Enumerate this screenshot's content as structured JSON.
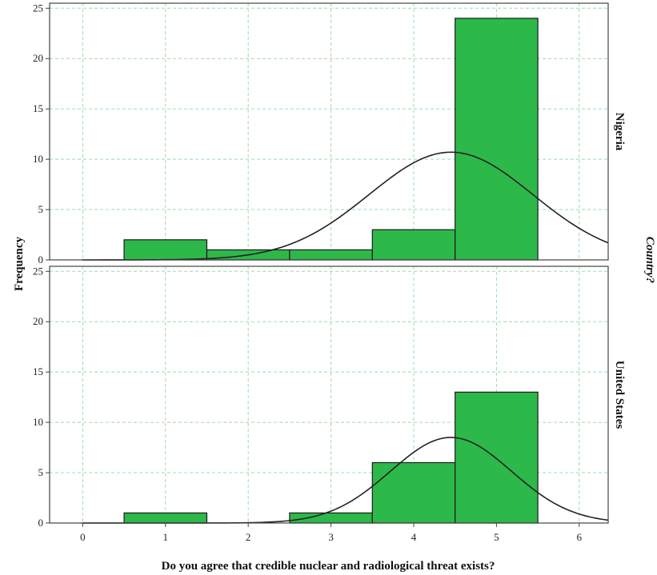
{
  "chart_data": {
    "type": "bar",
    "subtype": "histogram-with-normal-curve",
    "xlabel": "Do you agree that credible nuclear and radiological threat exists?",
    "ylabel": "Frequency",
    "facet_title": "Country?",
    "xlim": [
      -0.4,
      6.35
    ],
    "ylim": [
      0,
      25.5
    ],
    "xticks": [
      0,
      1,
      2,
      3,
      4,
      5,
      6
    ],
    "yticks": [
      0,
      5,
      10,
      15,
      20,
      25
    ],
    "grid": true,
    "bar_color": "#2db84a",
    "bin_edges": [
      0.5,
      1.5,
      2.5,
      3.5,
      4.5,
      5.5
    ],
    "bin_centers": [
      1,
      2,
      3,
      4,
      5
    ],
    "panels": [
      {
        "label": "Nigeria",
        "counts": [
          2,
          1,
          1,
          3,
          24
        ],
        "curve": {
          "mean": 4.45,
          "std": 0.99,
          "peak": 10.7
        }
      },
      {
        "label": "United States",
        "counts": [
          1,
          0,
          1,
          6,
          13
        ],
        "curve": {
          "mean": 4.45,
          "std": 0.73,
          "peak": 8.5
        }
      }
    ]
  }
}
